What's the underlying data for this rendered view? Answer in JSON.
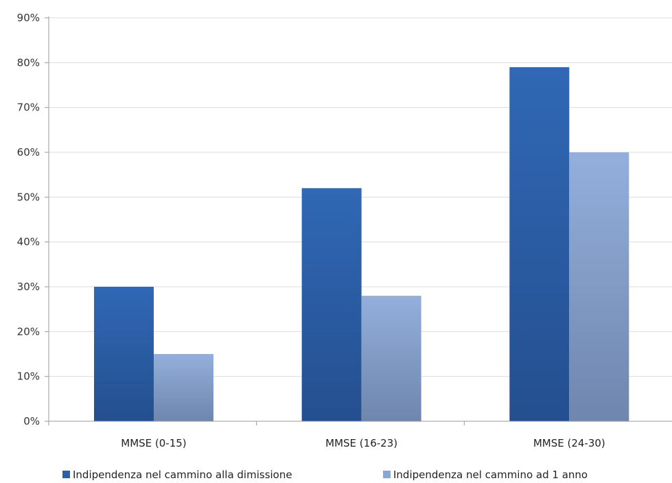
{
  "chart_data": {
    "type": "bar",
    "categories": [
      "MMSE (0-15)",
      "MMSE (16-23)",
      "MMSE (24-30)"
    ],
    "series": [
      {
        "name": "Indipendenza nel cammino alla dimissione",
        "values": [
          30,
          52,
          79
        ],
        "color": "#2d5fa6"
      },
      {
        "name": "Indipendenza nel cammino ad 1 anno",
        "values": [
          15,
          28,
          60
        ],
        "color": "#8aa6d4"
      }
    ],
    "ylim": [
      0,
      90
    ],
    "yticks": [
      "0%",
      "10%",
      "20%",
      "30%",
      "40%",
      "50%",
      "60%",
      "70%",
      "80%",
      "90%"
    ],
    "grid": true,
    "legend_position": "bottom"
  }
}
